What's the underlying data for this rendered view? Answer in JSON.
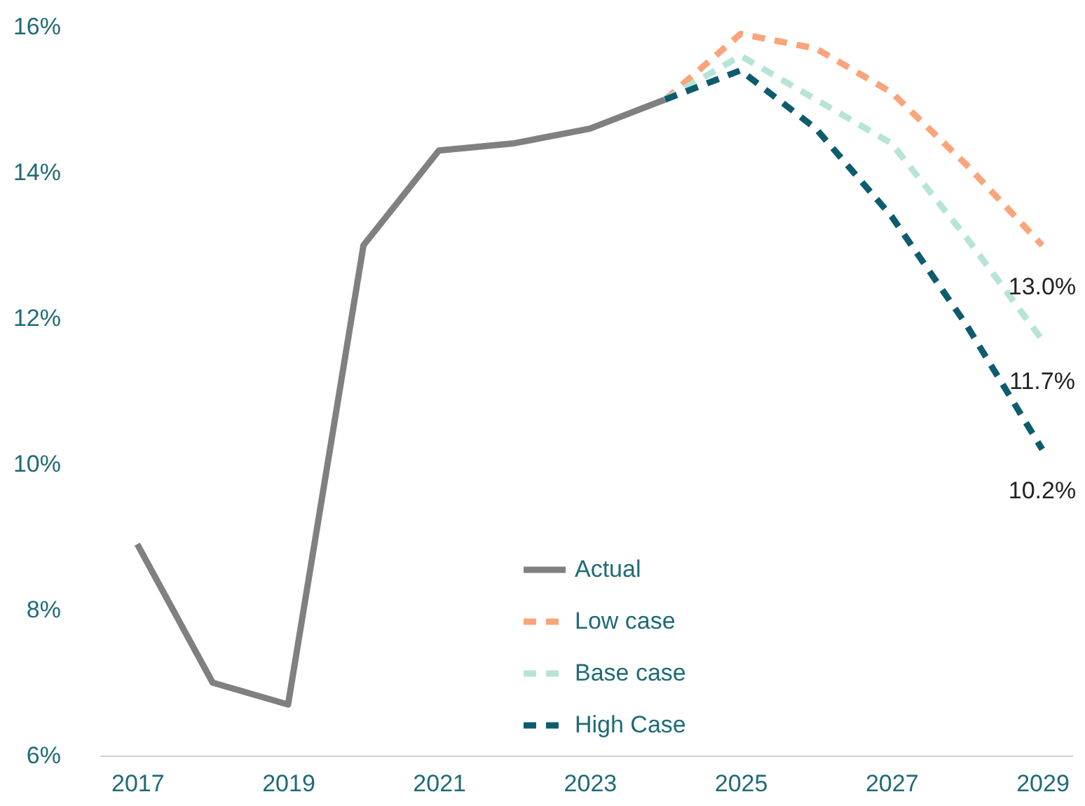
{
  "chart_data": {
    "type": "line",
    "series": [
      {
        "name": "Actual",
        "color": "#808080",
        "line_style": "solid",
        "x": [
          2017,
          2018,
          2019,
          2020,
          2021,
          2022,
          2023,
          2024
        ],
        "values": [
          8.9,
          7.0,
          6.7,
          13.0,
          14.3,
          14.4,
          14.6,
          15.0
        ]
      },
      {
        "name": "Low case",
        "color": "#f9a47b",
        "line_style": "dashed",
        "x": [
          2024,
          2025,
          2026,
          2027,
          2028,
          2029
        ],
        "values": [
          15.0,
          15.9,
          15.7,
          15.1,
          14.1,
          13.0
        ],
        "value_labels": [
          null,
          null,
          null,
          null,
          null,
          "13.0%"
        ]
      },
      {
        "name": "Base case",
        "color": "#b7e4d8",
        "line_style": "dashed",
        "x": [
          2024,
          2025,
          2026,
          2027,
          2028,
          2029
        ],
        "values": [
          15.0,
          15.6,
          15.0,
          14.4,
          13.1,
          11.7
        ],
        "value_labels": [
          null,
          null,
          null,
          null,
          null,
          "11.7%"
        ]
      },
      {
        "name": "High Case",
        "color": "#0d5c6e",
        "line_style": "dashed",
        "x": [
          2024,
          2025,
          2026,
          2027,
          2028,
          2029
        ],
        "values": [
          15.0,
          15.4,
          14.6,
          13.4,
          11.9,
          10.2
        ],
        "value_labels": [
          null,
          null,
          null,
          null,
          null,
          "10.2%"
        ]
      }
    ],
    "xlim": [
      2016.5,
      2029.4
    ],
    "xticks": [
      2017,
      2019,
      2021,
      2023,
      2025,
      2027,
      2029
    ],
    "ylim": [
      6,
      16
    ],
    "yticks": [
      {
        "value": 6,
        "label": "6%"
      },
      {
        "value": 8,
        "label": "8%"
      },
      {
        "value": 10,
        "label": "10%"
      },
      {
        "value": 12,
        "label": "12%"
      },
      {
        "value": 14,
        "label": "14%"
      },
      {
        "value": 16,
        "label": "16%"
      }
    ],
    "grid": false,
    "legend": "bottom",
    "marker": "none"
  }
}
